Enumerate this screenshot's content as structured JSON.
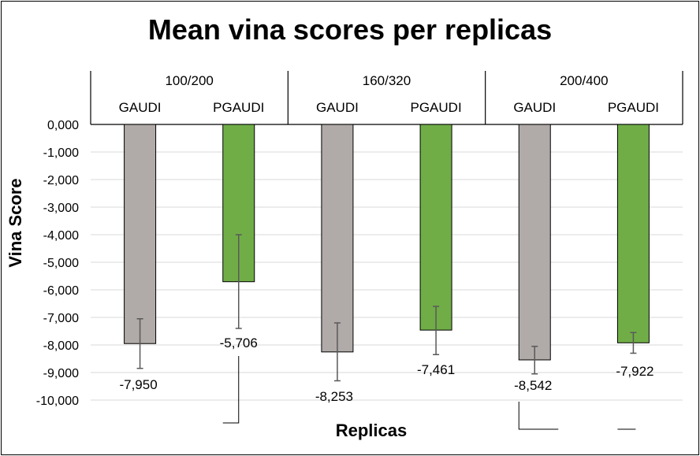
{
  "chart_data": {
    "type": "bar",
    "title": "Mean vina scores per replicas",
    "xlabel": "Replicas",
    "ylabel": "Vina Score",
    "ylim": [
      -10000,
      0
    ],
    "y_ticks": [
      "0,000",
      "-1,000",
      "-2,000",
      "-3,000",
      "-4,000",
      "-5,000",
      "-6,000",
      "-7,000",
      "-8,000",
      "-9,000",
      "-10,000"
    ],
    "grid": true,
    "groups": [
      "100/200",
      "160/320",
      "200/400"
    ],
    "categories": [
      {
        "group": "100/200",
        "label": "GAUDI"
      },
      {
        "group": "100/200",
        "label": "PGAUDI"
      },
      {
        "group": "160/320",
        "label": "GAUDI"
      },
      {
        "group": "160/320",
        "label": "PGAUDI"
      },
      {
        "group": "200/400",
        "label": "GAUDI"
      },
      {
        "group": "200/400",
        "label": "PGAUDI"
      }
    ],
    "values": [
      -7950,
      -5706,
      -8253,
      -7461,
      -8542,
      -7922
    ],
    "error_low": [
      -8850,
      -7400,
      -9300,
      -8350,
      -9050,
      -8300
    ],
    "error_high": [
      -7050,
      -4000,
      -7200,
      -6600,
      -8050,
      -7550
    ],
    "data_labels": [
      "-7,950",
      "-5,706",
      "-8,253",
      "-7,461",
      "-8,542",
      "-7,922"
    ],
    "colors": {
      "GAUDI": "#b0aaa8",
      "PGAUDI": "#70ad47",
      "gridline": "#d9d9d9"
    }
  }
}
